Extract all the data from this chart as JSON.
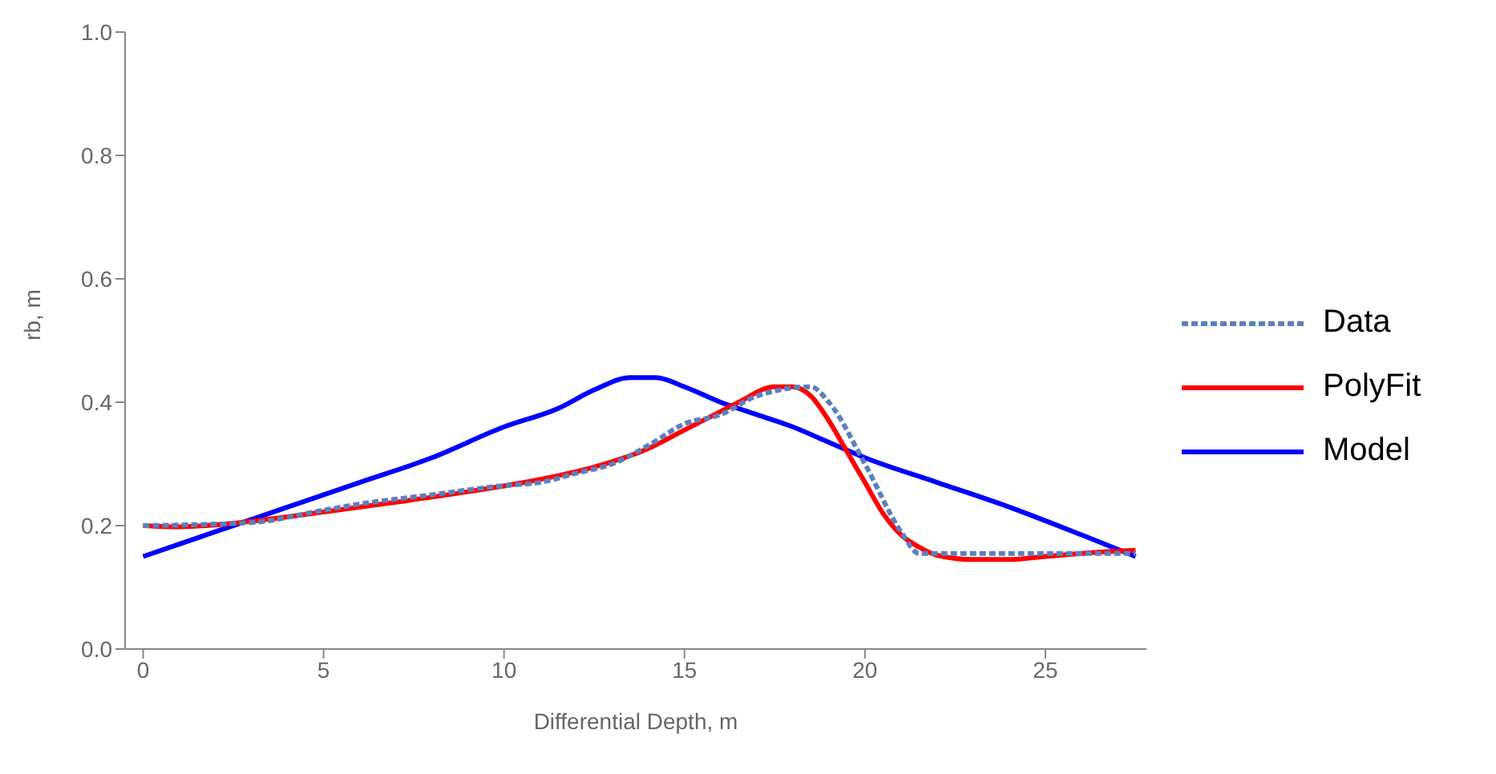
{
  "chart_data": {
    "type": "line",
    "xlabel": "Differential Depth, m",
    "ylabel": "rb, m",
    "xlim": [
      -0.5,
      27.8
    ],
    "ylim": [
      0,
      1
    ],
    "xticks": [
      0,
      5,
      10,
      15,
      20,
      25
    ],
    "yticks": [
      {
        "value": 0,
        "label": "0.0"
      },
      0.2,
      0.4,
      0.6,
      0.8,
      {
        "value": 1,
        "label": "1.0"
      }
    ],
    "grid": false,
    "legend": "right",
    "marker": "none",
    "series": [
      {
        "name": "Data",
        "color": "#5b7fbf",
        "line_style": "dashed",
        "x": [
          0,
          3,
          5,
          6,
          8,
          10,
          11,
          12,
          13,
          14,
          15,
          16,
          17,
          18.5,
          19,
          20,
          21,
          21.5,
          22,
          27.5
        ],
        "values": [
          0.2,
          0.205,
          0.225,
          0.235,
          0.25,
          0.265,
          0.27,
          0.285,
          0.3,
          0.33,
          0.365,
          0.38,
          0.41,
          0.425,
          0.4,
          0.3,
          0.19,
          0.155,
          0.155,
          0.155
        ]
      },
      {
        "name": "PolyFit",
        "color": "#ff0000",
        "line_style": "solid",
        "x": [
          0,
          1,
          3,
          5,
          7,
          9,
          11,
          12.5,
          14,
          15,
          16,
          16.5,
          17.5,
          18,
          18.5,
          19,
          19.5,
          20,
          20.5,
          21,
          21.5,
          22,
          23,
          24,
          25,
          26,
          27.5
        ],
        "values": [
          0.2,
          0.198,
          0.207,
          0.222,
          0.238,
          0.255,
          0.275,
          0.295,
          0.325,
          0.355,
          0.385,
          0.4,
          0.425,
          0.425,
          0.41,
          0.37,
          0.32,
          0.27,
          0.22,
          0.185,
          0.165,
          0.152,
          0.145,
          0.145,
          0.15,
          0.155,
          0.16
        ]
      },
      {
        "name": "Model",
        "color": "#0000ff",
        "line_style": "solid",
        "x": [
          0,
          2,
          4,
          6,
          8,
          10,
          11.5,
          12.5,
          13.5,
          14.2,
          15,
          16,
          17,
          18,
          19,
          20,
          22,
          24,
          26,
          27.5
        ],
        "values": [
          0.15,
          0.19,
          0.23,
          0.27,
          0.31,
          0.36,
          0.39,
          0.42,
          0.44,
          0.44,
          0.425,
          0.4,
          0.38,
          0.36,
          0.335,
          0.31,
          0.27,
          0.23,
          0.185,
          0.15
        ]
      }
    ]
  }
}
